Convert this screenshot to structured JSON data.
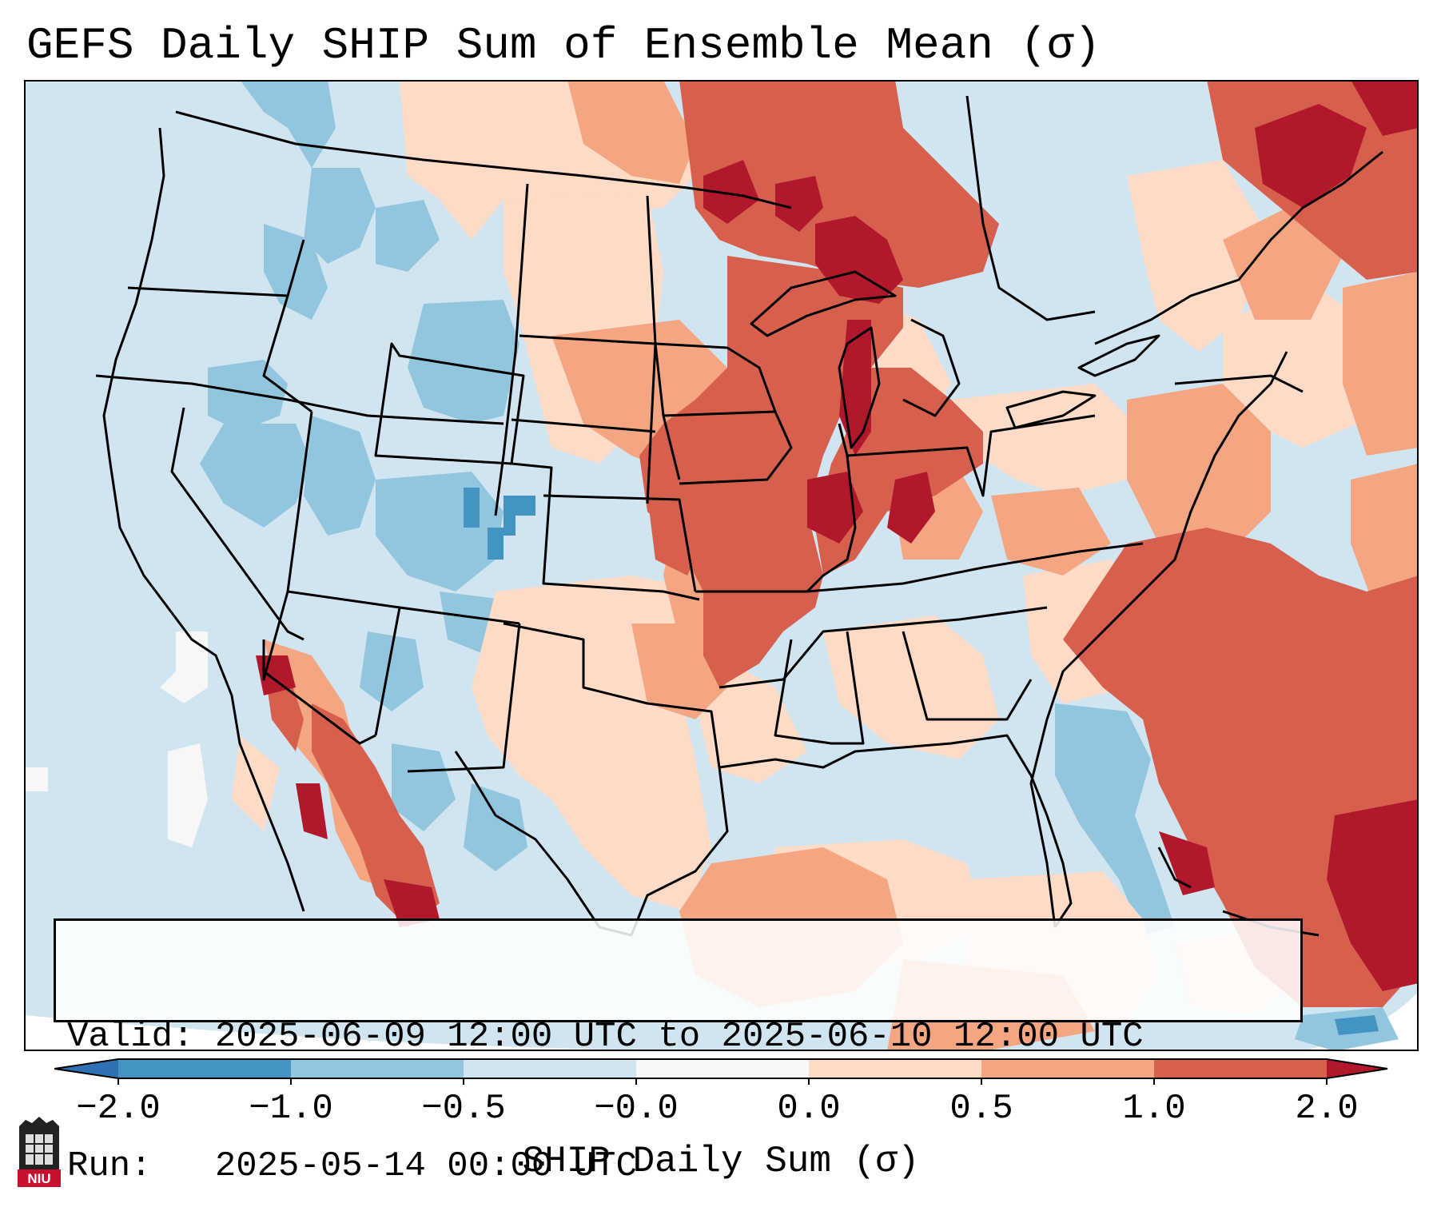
{
  "title": "GEFS Daily SHIP Sum of Ensemble Mean (σ)",
  "info": {
    "valid_label": "Valid:",
    "valid_value": "2025-06-09 12:00 UTC to 2025-06-10 12:00 UTC",
    "run_label": "Run:",
    "run_value": "2025-05-14 00:00 UTC"
  },
  "colorbar": {
    "label": "SHIP Daily Sum (σ)",
    "ticks": [
      "−2.0",
      "−1.0",
      "−0.5",
      "−0.0",
      "0.0",
      "0.5",
      "1.0",
      "2.0"
    ],
    "colors": {
      "under": "#2f72b4",
      "neg_2_to_1": "#4393c3",
      "neg_1_to_05": "#92c5de",
      "neg_05_to_0": "#d1e5f0",
      "zero": "#f7f7f7",
      "pos_0_to_05": "#fddbc7",
      "pos_05_to_1": "#f4a582",
      "pos_1_to_2": "#d6604d",
      "over": "#b2182b"
    }
  },
  "logo": {
    "text": "NIU"
  }
}
